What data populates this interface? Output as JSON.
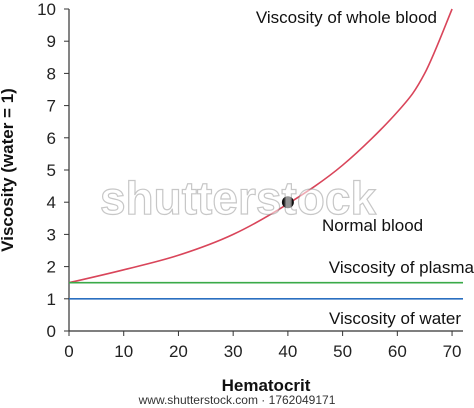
{
  "chart_data": {
    "type": "line",
    "xlabel": "Hematocrit",
    "ylabel": "Viscosity (water = 1)",
    "xlim": [
      0,
      72
    ],
    "ylim": [
      0,
      10
    ],
    "x_ticks": [
      0,
      10,
      20,
      30,
      40,
      50,
      60,
      70
    ],
    "y_ticks": [
      0,
      1,
      2,
      3,
      4,
      5,
      6,
      7,
      8,
      9,
      10
    ],
    "grid": false,
    "series": [
      {
        "name": "Viscosity of whole blood",
        "color": "#d9455a",
        "points": [
          [
            0,
            1.5
          ],
          [
            10,
            1.9
          ],
          [
            20,
            2.35
          ],
          [
            30,
            3.0
          ],
          [
            40,
            3.95
          ],
          [
            50,
            5.15
          ],
          [
            60,
            6.8
          ],
          [
            65,
            8.0
          ],
          [
            70,
            10.0
          ]
        ]
      },
      {
        "name": "Viscosity of plasma",
        "color": "#3aaa48",
        "points": [
          [
            0,
            1.5
          ],
          [
            72,
            1.5
          ]
        ]
      },
      {
        "name": "Viscosity of water",
        "color": "#2a6fc0",
        "points": [
          [
            0,
            1.0
          ],
          [
            72,
            1.0
          ]
        ]
      }
    ],
    "markers": [
      {
        "label": "Normal blood",
        "x": 40,
        "y": 4.0,
        "color": "#111111"
      }
    ]
  },
  "watermark": {
    "text": "shutterstock",
    "url": "www.shutterstock.com · 1762049171"
  }
}
